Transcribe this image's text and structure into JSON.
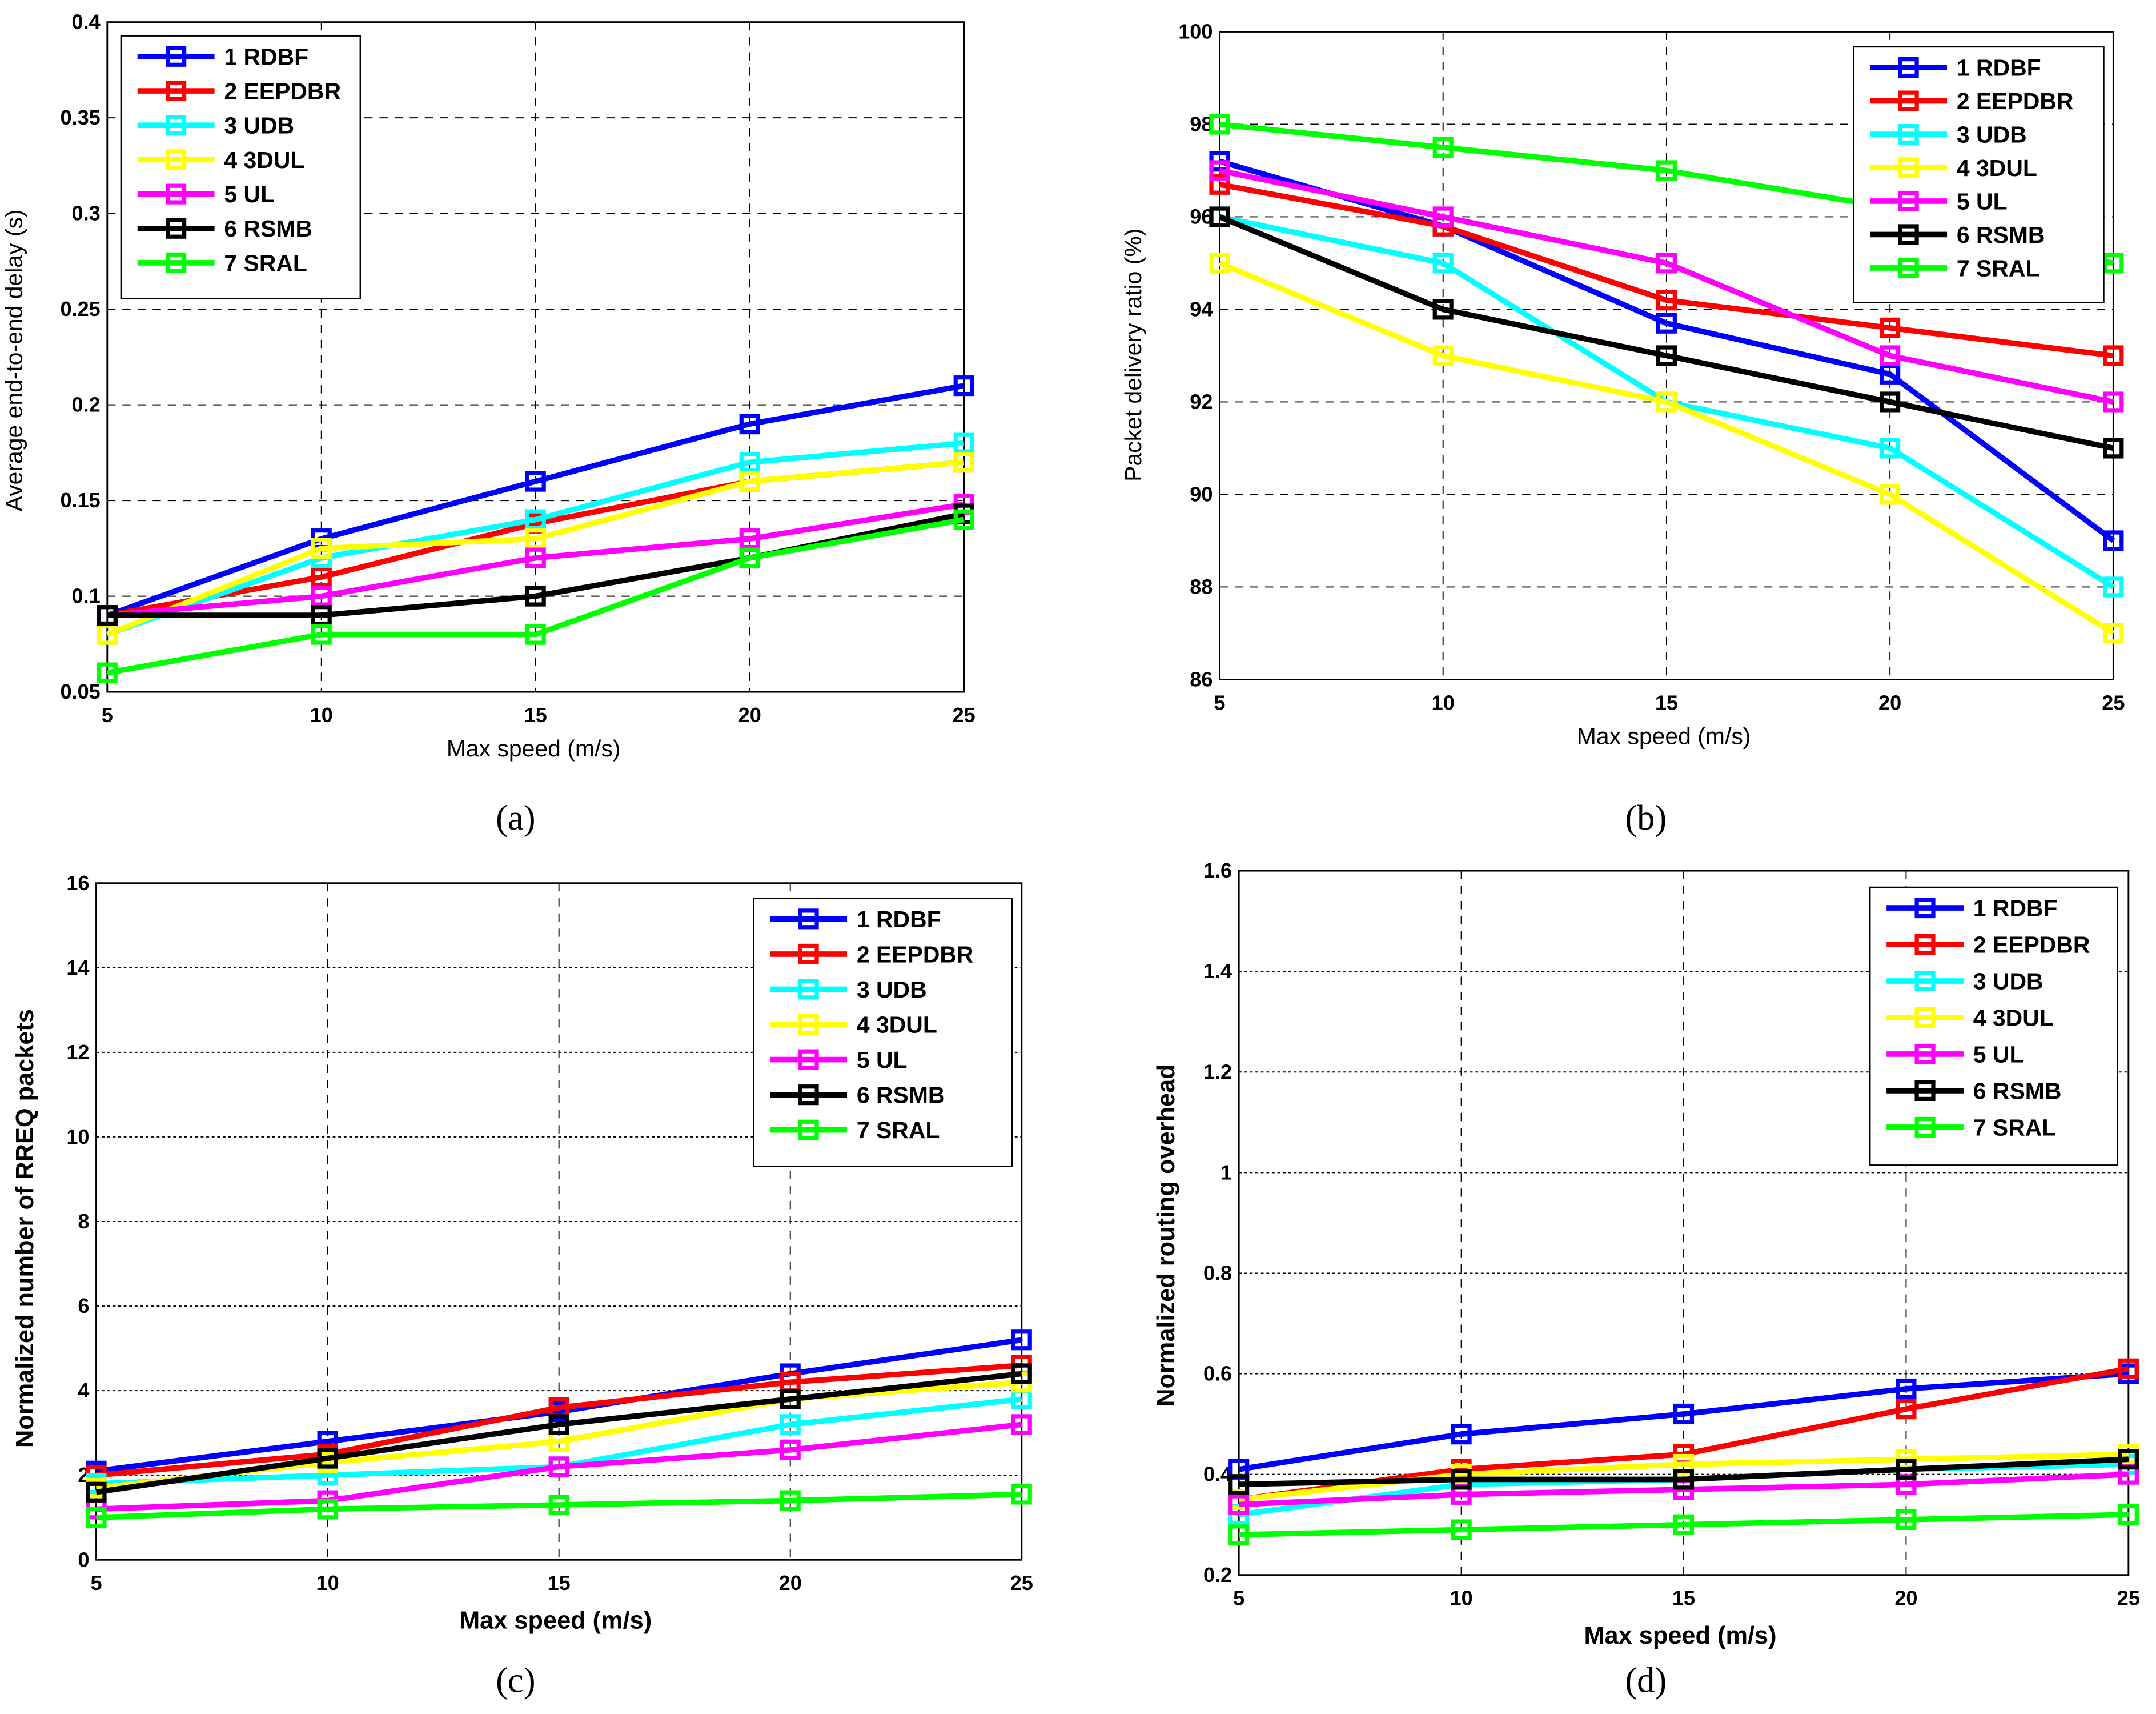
{
  "colors": {
    "RDBF": "#0000ff",
    "EEPDBR": "#ff0000",
    "UDB": "#00ffff",
    "3DUL": "#ffff00",
    "UL": "#ff00ff",
    "RSMB": "#000000",
    "SRAL": "#00ff00"
  },
  "chart_data": [
    {
      "type": "line",
      "caption": "(a)",
      "xlabel": "Max speed (m/s)",
      "ylabel": "Average end-to-end delay (s)",
      "x": [
        5,
        10,
        15,
        20,
        25
      ],
      "xlim": [
        5,
        25
      ],
      "ylim": [
        0.05,
        0.4
      ],
      "yticks": [
        "0.05",
        "0.1",
        "0.15",
        "0.2",
        "0.25",
        "0.3",
        "0.35",
        "0.4"
      ],
      "xticks": [
        "5",
        "10",
        "15",
        "20",
        "25"
      ],
      "grid": true,
      "legend_position": "top-left",
      "series": [
        {
          "name": "1 RDBF",
          "key": "RDBF",
          "values": [
            0.09,
            0.13,
            0.16,
            0.19,
            0.21
          ]
        },
        {
          "name": "2 EEPDBR",
          "key": "EEPDBR",
          "values": [
            0.09,
            0.11,
            0.138,
            0.16,
            0.17
          ]
        },
        {
          "name": "3 UDB",
          "key": "UDB",
          "values": [
            0.08,
            0.12,
            0.14,
            0.17,
            0.18
          ]
        },
        {
          "name": "4 3DUL",
          "key": "3DUL",
          "values": [
            0.08,
            0.125,
            0.13,
            0.16,
            0.17
          ]
        },
        {
          "name": "5 UL",
          "key": "UL",
          "values": [
            0.09,
            0.1,
            0.12,
            0.13,
            0.148
          ]
        },
        {
          "name": "6 RSMB",
          "key": "RSMB",
          "values": [
            0.09,
            0.09,
            0.1,
            0.12,
            0.143
          ]
        },
        {
          "name": "7 SRAL",
          "key": "SRAL",
          "values": [
            0.06,
            0.08,
            0.08,
            0.12,
            0.14
          ]
        }
      ]
    },
    {
      "type": "line",
      "caption": "(b)",
      "xlabel": "Max speed (m/s)",
      "ylabel": "Packet delivery ratio (%)",
      "x": [
        5,
        10,
        15,
        20,
        25
      ],
      "xlim": [
        5,
        25
      ],
      "ylim": [
        86,
        100
      ],
      "yticks": [
        "86",
        "88",
        "90",
        "92",
        "94",
        "96",
        "98",
        "100"
      ],
      "xticks": [
        "5",
        "10",
        "15",
        "20",
        "25"
      ],
      "grid": true,
      "legend_position": "top-right",
      "series": [
        {
          "name": "1 RDBF",
          "key": "RDBF",
          "values": [
            97.2,
            95.8,
            93.7,
            92.6,
            89
          ]
        },
        {
          "name": "2 EEPDBR",
          "key": "EEPDBR",
          "values": [
            96.7,
            95.8,
            94.2,
            93.6,
            93
          ]
        },
        {
          "name": "3 UDB",
          "key": "UDB",
          "values": [
            96,
            95,
            92,
            91,
            88
          ]
        },
        {
          "name": "4 3DUL",
          "key": "3DUL",
          "values": [
            95,
            93,
            92,
            90,
            87
          ]
        },
        {
          "name": "5 UL",
          "key": "UL",
          "values": [
            97,
            96,
            95,
            93,
            92
          ]
        },
        {
          "name": "6 RSMB",
          "key": "RSMB",
          "values": [
            96,
            94,
            93,
            92,
            91
          ]
        },
        {
          "name": "7 SRAL",
          "key": "SRAL",
          "values": [
            98,
            97.5,
            97,
            96.2,
            95
          ]
        }
      ]
    },
    {
      "type": "line",
      "caption": "(c)",
      "xlabel": "Max speed (m/s)",
      "ylabel": "Normalized number of RREQ packets",
      "x": [
        5,
        10,
        15,
        20,
        25
      ],
      "xlim": [
        5,
        25
      ],
      "ylim": [
        0,
        16
      ],
      "yticks": [
        "0",
        "2",
        "4",
        "6",
        "8",
        "10",
        "12",
        "14",
        "16"
      ],
      "xticks": [
        "5",
        "10",
        "15",
        "20",
        "25"
      ],
      "grid": true,
      "legend_position": "top-right",
      "series": [
        {
          "name": "1 RDBF",
          "key": "RDBF",
          "values": [
            2.1,
            2.8,
            3.5,
            4.4,
            5.2
          ]
        },
        {
          "name": "2 EEPDBR",
          "key": "EEPDBR",
          "values": [
            2.0,
            2.5,
            3.6,
            4.2,
            4.6
          ]
        },
        {
          "name": "3 UDB",
          "key": "UDB",
          "values": [
            1.8,
            2.0,
            2.2,
            3.2,
            3.8
          ]
        },
        {
          "name": "4 3DUL",
          "key": "3DUL",
          "values": [
            1.7,
            2.3,
            2.8,
            3.8,
            4.2
          ]
        },
        {
          "name": "5 UL",
          "key": "UL",
          "values": [
            1.2,
            1.4,
            2.2,
            2.6,
            3.2
          ]
        },
        {
          "name": "6 RSMB",
          "key": "RSMB",
          "values": [
            1.6,
            2.4,
            3.2,
            3.8,
            4.4
          ]
        },
        {
          "name": "7 SRAL",
          "key": "SRAL",
          "values": [
            1.0,
            1.2,
            1.3,
            1.4,
            1.55
          ]
        }
      ]
    },
    {
      "type": "line",
      "caption": "(d)",
      "xlabel": "Max speed (m/s)",
      "ylabel": "Normalized routing overhead",
      "x": [
        5,
        10,
        15,
        20,
        25
      ],
      "xlim": [
        5,
        25
      ],
      "ylim": [
        0.2,
        1.6
      ],
      "yticks": [
        "0.2",
        "0.4",
        "0.6",
        "0.8",
        "1",
        "1.2",
        "1.4",
        "1.6"
      ],
      "xticks": [
        "5",
        "10",
        "15",
        "20",
        "25"
      ],
      "grid": true,
      "legend_position": "top-right",
      "series": [
        {
          "name": "1 RDBF",
          "key": "RDBF",
          "values": [
            0.41,
            0.48,
            0.52,
            0.57,
            0.6
          ]
        },
        {
          "name": "2 EEPDBR",
          "key": "EEPDBR",
          "values": [
            0.35,
            0.41,
            0.44,
            0.53,
            0.61
          ]
        },
        {
          "name": "3 UDB",
          "key": "UDB",
          "values": [
            0.32,
            0.38,
            0.39,
            0.41,
            0.42
          ]
        },
        {
          "name": "4 3DUL",
          "key": "3DUL",
          "values": [
            0.35,
            0.4,
            0.42,
            0.43,
            0.44
          ]
        },
        {
          "name": "5 UL",
          "key": "UL",
          "values": [
            0.34,
            0.36,
            0.37,
            0.38,
            0.4
          ]
        },
        {
          "name": "6 RSMB",
          "key": "RSMB",
          "values": [
            0.38,
            0.39,
            0.39,
            0.41,
            0.43
          ]
        },
        {
          "name": "7 SRAL",
          "key": "SRAL",
          "values": [
            0.28,
            0.29,
            0.3,
            0.31,
            0.32
          ]
        }
      ]
    }
  ]
}
